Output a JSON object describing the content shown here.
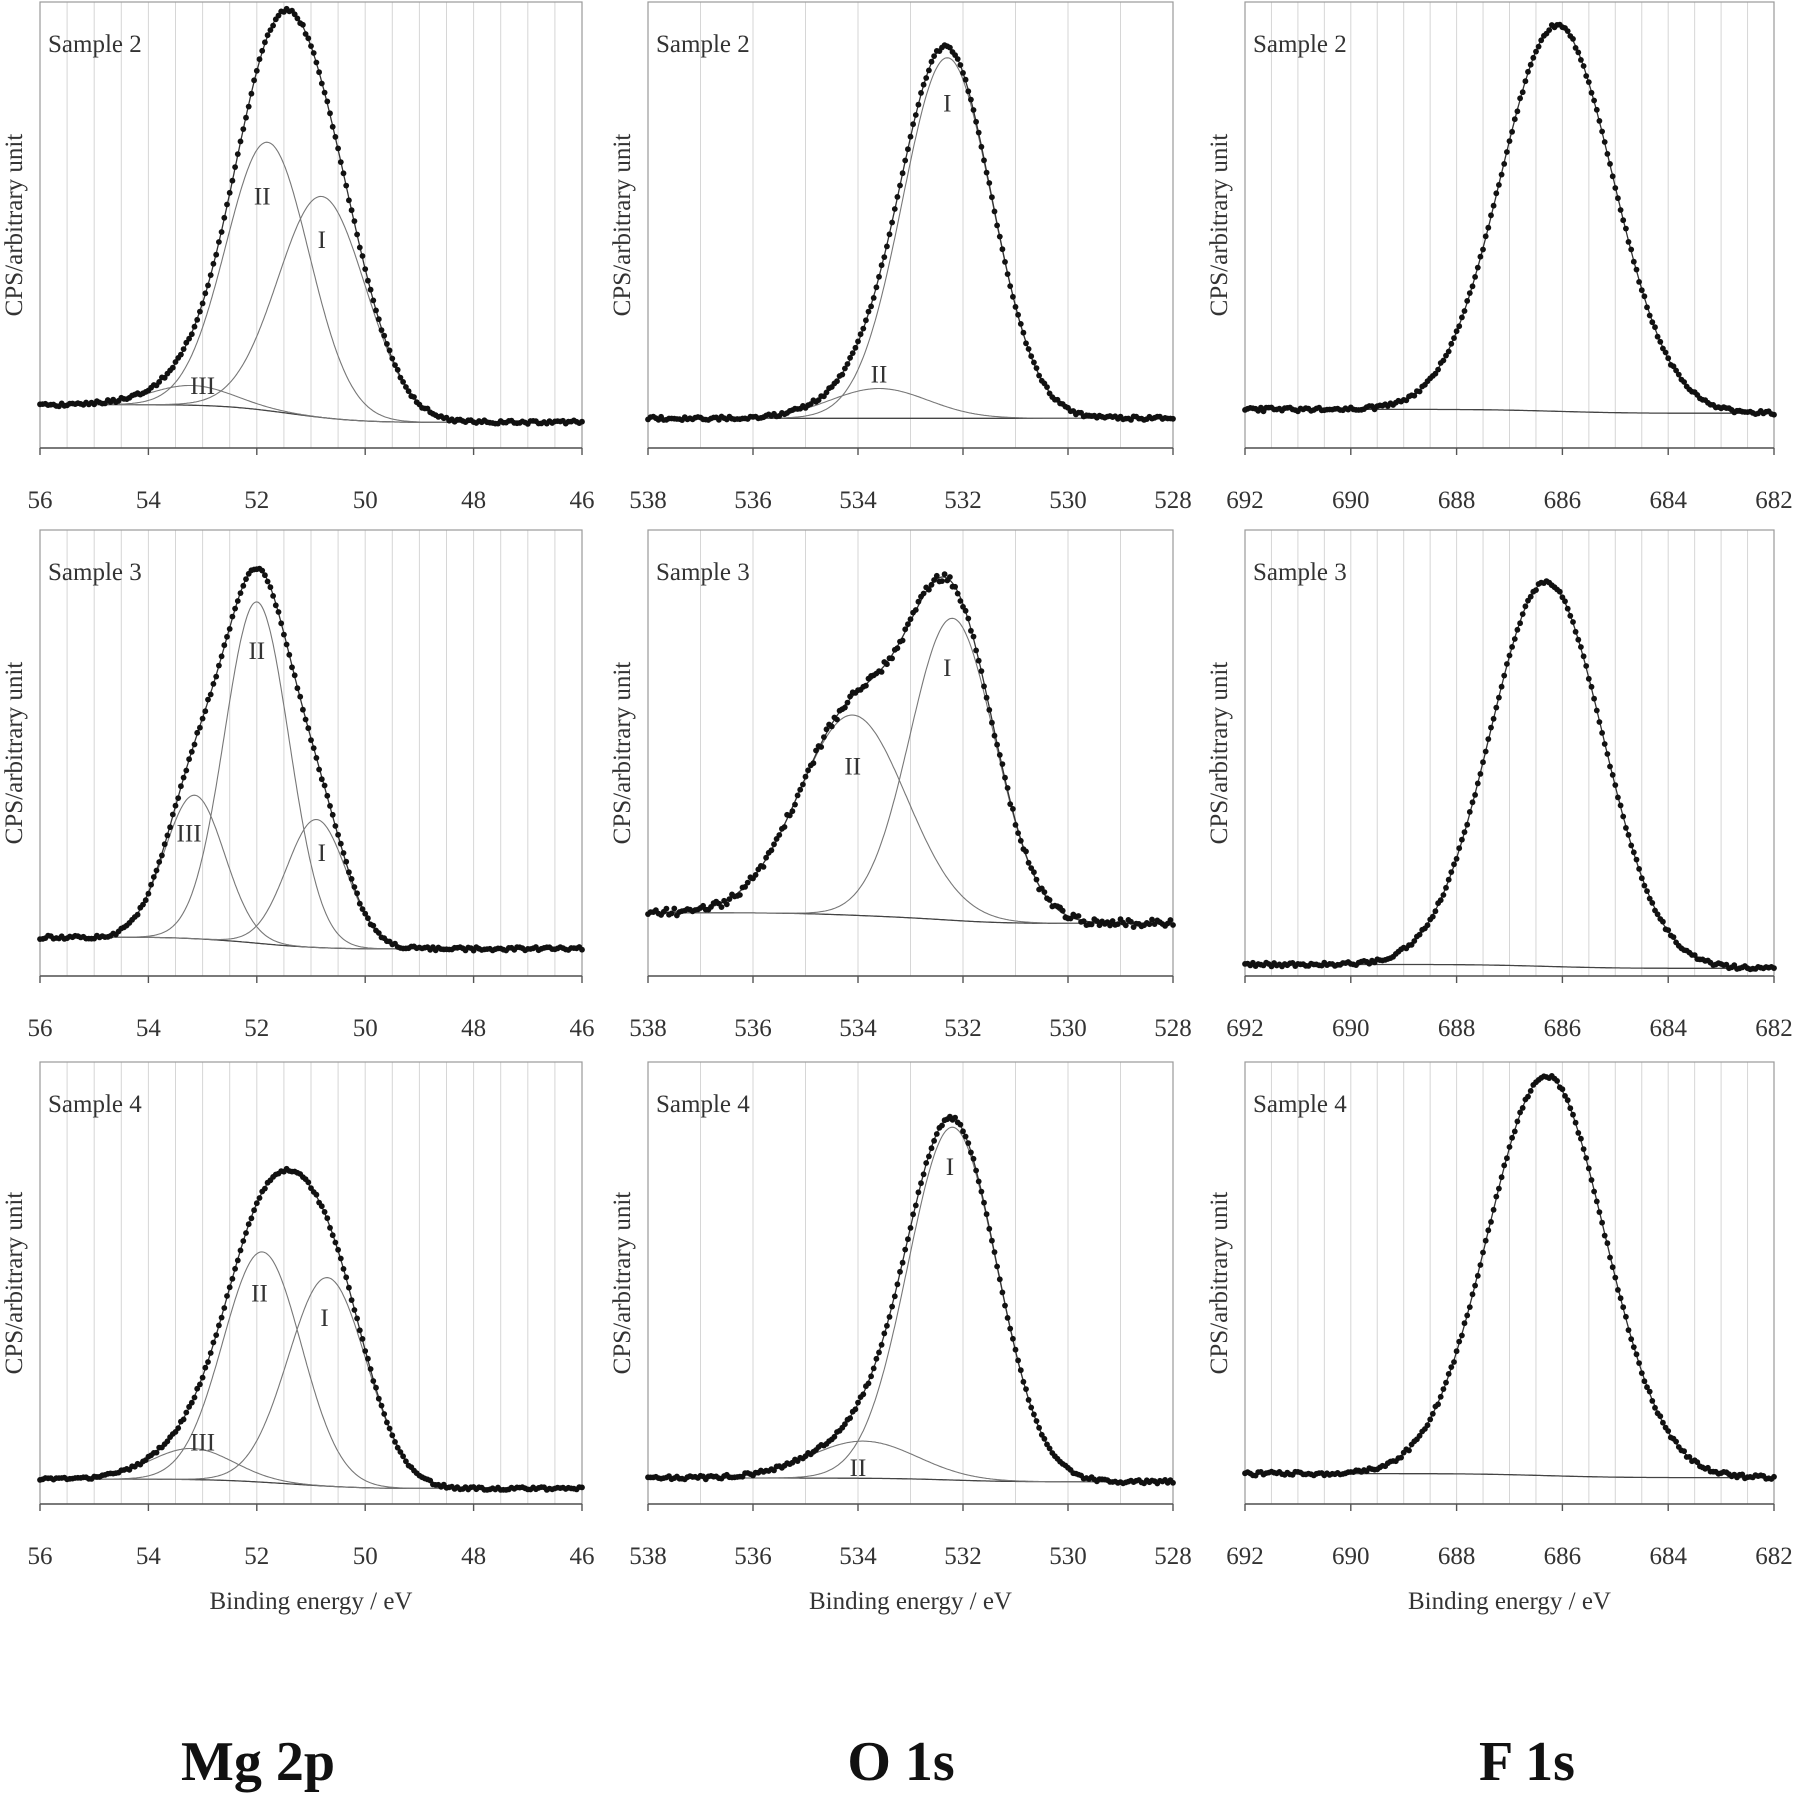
{
  "group_titles": [
    "Mg 2p",
    "O 1s",
    "F 1s"
  ],
  "chart_data": [
    {
      "type": "line",
      "group": "Mg 2p",
      "panel_title": "Sample 2",
      "ylabel": "CPS/arbitrary unit",
      "xlabel": "",
      "xlim": [
        56,
        46
      ],
      "ylim": [
        -0.09,
        1.04
      ],
      "xticks": [
        "56",
        "54",
        "52",
        "50",
        "48",
        "46"
      ],
      "grid_step": 0.5,
      "background": [
        0.02,
        -0.025
      ],
      "components": [
        {
          "label": "I",
          "center": 50.8,
          "height": 0.56,
          "fwhm": 1.9,
          "label_x": 50.8,
          "label_y": 0.44
        },
        {
          "label": "II",
          "center": 51.8,
          "height": 0.68,
          "fwhm": 1.8,
          "label_x": 51.9,
          "label_y": 0.55
        },
        {
          "label": "III",
          "center": 53.2,
          "height": 0.05,
          "fwhm": 1.8,
          "label_x": 53.0,
          "label_y": 0.07
        }
      ]
    },
    {
      "type": "line",
      "group": "O 1s",
      "panel_title": "Sample 2",
      "ylabel": "CPS/arbitrary unit",
      "xlabel": "",
      "xlim": [
        538,
        528
      ],
      "ylim": [
        -0.08,
        1.12
      ],
      "xticks": [
        "538",
        "536",
        "534",
        "532",
        "530",
        "528"
      ],
      "grid_step": 1,
      "background": [
        0.0,
        0.0
      ],
      "components": [
        {
          "label": "I",
          "center": 532.3,
          "height": 0.97,
          "fwhm": 2.0,
          "label_x": 532.3,
          "label_y": 0.85
        },
        {
          "label": "II",
          "center": 533.6,
          "height": 0.08,
          "fwhm": 2.2,
          "label_x": 533.6,
          "label_y": 0.12
        }
      ]
    },
    {
      "type": "line",
      "group": "F 1s",
      "panel_title": "Sample 2",
      "ylabel": "CPS/arbitrary unit",
      "xlabel": "",
      "xlim": [
        692,
        682
      ],
      "ylim": [
        -0.09,
        1.065
      ],
      "xticks": [
        "692",
        "690",
        "688",
        "686",
        "684",
        "682"
      ],
      "grid_step": 0.5,
      "background": [
        0.01,
        0.0
      ],
      "components": [
        {
          "label": "",
          "center": 686.1,
          "height": 1.0,
          "fwhm": 2.5
        }
      ]
    },
    {
      "type": "line",
      "group": "Mg 2p",
      "panel_title": "Sample 3",
      "ylabel": "CPS/arbitrary unit",
      "xlabel": "",
      "xlim": [
        56,
        46
      ],
      "ylim": [
        -0.1,
        1.05
      ],
      "xticks": [
        "56",
        "54",
        "52",
        "50",
        "48",
        "46"
      ],
      "grid_step": 0.5,
      "background": [
        0.0,
        -0.03
      ],
      "components": [
        {
          "label": "I",
          "center": 50.9,
          "height": 0.33,
          "fwhm": 1.3,
          "label_x": 50.8,
          "label_y": 0.22
        },
        {
          "label": "II",
          "center": 52.0,
          "height": 0.88,
          "fwhm": 1.4,
          "label_x": 52.0,
          "label_y": 0.74
        },
        {
          "label": "III",
          "center": 53.15,
          "height": 0.37,
          "fwhm": 1.3,
          "label_x": 53.25,
          "label_y": 0.27
        }
      ]
    },
    {
      "type": "line",
      "group": "O 1s",
      "panel_title": "Sample 3",
      "ylabel": "CPS/arbitrary unit",
      "xlabel": "",
      "xlim": [
        538,
        528
      ],
      "ylim": [
        -0.15,
        1.12
      ],
      "xticks": [
        "538",
        "536",
        "534",
        "532",
        "530",
        "528"
      ],
      "grid_step": 1,
      "background": [
        0.03,
        0.0
      ],
      "components": [
        {
          "label": "I",
          "center": 532.2,
          "height": 0.86,
          "fwhm": 1.9,
          "label_x": 532.3,
          "label_y": 0.73
        },
        {
          "label": "II",
          "center": 534.1,
          "height": 0.57,
          "fwhm": 2.4,
          "label_x": 534.1,
          "label_y": 0.45
        }
      ]
    },
    {
      "type": "line",
      "group": "F 1s",
      "panel_title": "Sample 3",
      "ylabel": "CPS/arbitrary unit",
      "xlabel": "",
      "xlim": [
        692,
        682
      ],
      "ylim": [
        -0.02,
        1.14
      ],
      "xticks": [
        "692",
        "690",
        "688",
        "686",
        "684",
        "682"
      ],
      "grid_step": 0.5,
      "background": [
        0.01,
        0.0
      ],
      "components": [
        {
          "label": "",
          "center": 686.3,
          "height": 1.0,
          "fwhm": 2.5
        }
      ]
    },
    {
      "type": "line",
      "group": "Mg 2p",
      "panel_title": "Sample 4",
      "ylabel": "CPS/arbitrary unit",
      "xlabel": "Binding energy / eV",
      "xlim": [
        56,
        46
      ],
      "ylim": [
        -0.07,
        1.35
      ],
      "xticks": [
        "56",
        "54",
        "52",
        "50",
        "48",
        "46"
      ],
      "grid_step": 0.5,
      "background": [
        0.01,
        -0.02
      ],
      "components": [
        {
          "label": "I",
          "center": 50.7,
          "height": 0.67,
          "fwhm": 1.7,
          "label_x": 50.75,
          "label_y": 0.53
        },
        {
          "label": "II",
          "center": 51.9,
          "height": 0.74,
          "fwhm": 1.7,
          "label_x": 51.95,
          "label_y": 0.61
        },
        {
          "label": "III",
          "center": 53.2,
          "height": 0.1,
          "fwhm": 1.8,
          "label_x": 53.0,
          "label_y": 0.13
        }
      ]
    },
    {
      "type": "line",
      "group": "O 1s",
      "panel_title": "Sample 4",
      "ylabel": "CPS/arbitrary unit",
      "xlabel": "Binding energy / eV",
      "xlim": [
        538,
        528
      ],
      "ylim": [
        -0.07,
        1.12
      ],
      "xticks": [
        "538",
        "536",
        "534",
        "532",
        "530",
        "528"
      ],
      "grid_step": 1,
      "background": [
        0.0,
        -0.01
      ],
      "components": [
        {
          "label": "I",
          "center": 532.2,
          "height": 0.95,
          "fwhm": 2.0,
          "label_x": 532.25,
          "label_y": 0.84
        },
        {
          "label": "II",
          "center": 533.9,
          "height": 0.1,
          "fwhm": 2.4,
          "label_x": 534.0,
          "label_y": 0.03
        }
      ]
    },
    {
      "type": "line",
      "group": "F 1s",
      "panel_title": "Sample 4",
      "ylabel": "CPS/arbitrary unit",
      "xlabel": "Binding energy / eV",
      "xlim": [
        692,
        682
      ],
      "ylim": [
        -0.066,
        1.04
      ],
      "xticks": [
        "692",
        "690",
        "688",
        "686",
        "684",
        "682"
      ],
      "grid_step": 0.5,
      "background": [
        0.01,
        0.0
      ],
      "components": [
        {
          "label": "",
          "center": 686.3,
          "height": 1.0,
          "fwhm": 2.6
        }
      ]
    }
  ]
}
